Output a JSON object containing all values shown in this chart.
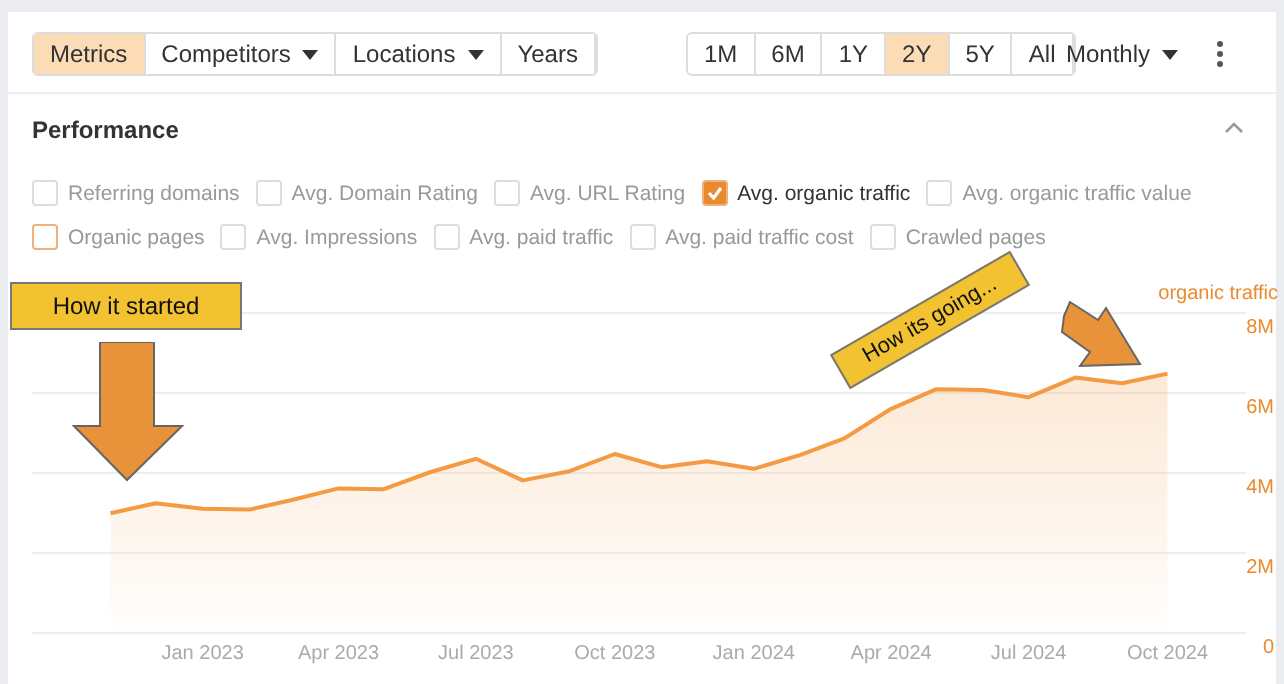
{
  "chart_data": {
    "type": "area",
    "title": "Performance",
    "ylabel": "organic traffic",
    "x": [
      "2022-11",
      "2022-12",
      "2023-01",
      "2023-02",
      "2023-03",
      "2023-04",
      "2023-05",
      "2023-06",
      "2023-07",
      "2023-08",
      "2023-09",
      "2023-10",
      "2023-11",
      "2023-12",
      "2024-01",
      "2024-02",
      "2024-03",
      "2024-04",
      "2024-05",
      "2024-06",
      "2024-07",
      "2024-08",
      "2024-09",
      "2024-10"
    ],
    "series": [
      {
        "color": "#f39a43",
        "values": [
          2.97,
          3.22,
          3.08,
          3.06,
          3.3,
          3.59,
          3.57,
          4.0,
          4.33,
          3.79,
          4.02,
          4.45,
          4.12,
          4.27,
          4.08,
          4.43,
          4.84,
          5.58,
          6.07,
          6.05,
          5.87,
          6.36,
          6.22,
          6.46
        ]
      }
    ],
    "xlim": [
      "2022-09-10",
      "2024-11-22"
    ],
    "xticks": [
      {
        "value": "2023-01",
        "label": "Jan 2023"
      },
      {
        "value": "2023-04",
        "label": "Apr 2023"
      },
      {
        "value": "2023-07",
        "label": "Jul 2023"
      },
      {
        "value": "2023-10",
        "label": "Oct 2023"
      },
      {
        "value": "2024-01",
        "label": "Jan 2024"
      },
      {
        "value": "2024-04",
        "label": "Apr 2024"
      },
      {
        "value": "2024-07",
        "label": "Jul 2024"
      },
      {
        "value": "2024-10",
        "label": "Oct 2024"
      }
    ],
    "ylim": [
      0,
      8
    ],
    "yticks": [
      0,
      {
        "value": 2,
        "label": "2M"
      },
      {
        "value": 4,
        "label": "4M"
      },
      {
        "value": 6,
        "label": "6M"
      },
      {
        "value": 8,
        "label": "8M"
      }
    ],
    "grid": "y",
    "marker": "none",
    "line_style": "solid",
    "annotations": [
      "Metrics",
      "Competitors",
      "Locations",
      "Years",
      "1M",
      "6M",
      "1Y",
      "2Y",
      "5Y",
      "All",
      "Monthly",
      "Referring domains",
      "Avg. Domain Rating",
      "Avg. URL Rating",
      "Avg. organic traffic",
      "Avg. organic traffic value",
      "Organic pages",
      "Avg. Impressions",
      "Avg. paid traffic",
      "Avg. paid traffic cost",
      "Crawled pages",
      "How it started",
      "How its going..."
    ]
  }
}
